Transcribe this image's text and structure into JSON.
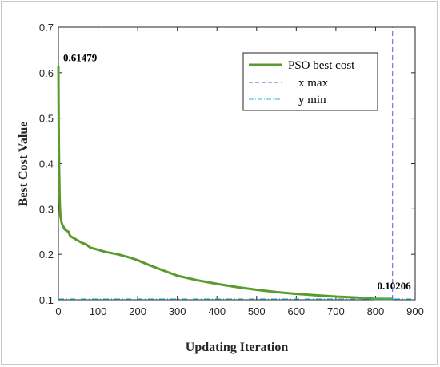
{
  "chart_data": {
    "type": "line",
    "xlabel": "Updating Iteration",
    "ylabel": "Best Cost Value",
    "xlim": [
      0,
      900
    ],
    "ylim": [
      0.1,
      0.7
    ],
    "xticks": [
      0,
      100,
      200,
      300,
      400,
      500,
      600,
      700,
      800,
      900
    ],
    "yticks": [
      0.1,
      0.2,
      0.3,
      0.4,
      0.5,
      0.6,
      0.7
    ],
    "xtick_labels": [
      "0",
      "100",
      "200",
      "300",
      "400",
      "500",
      "600",
      "700",
      "800",
      "900"
    ],
    "ytick_labels": [
      "0.1",
      "0.2",
      "0.3",
      "0.4",
      "0.5",
      "0.6",
      "0.7"
    ],
    "grid": false,
    "legend_position": "top-right",
    "series": [
      {
        "name": "PSO best cost",
        "style": "solid",
        "color": "#5b9a2c",
        "x": [
          0,
          1,
          2,
          3,
          4,
          5,
          6,
          8,
          10,
          12,
          15,
          20,
          25,
          30,
          40,
          50,
          60,
          70,
          80,
          100,
          120,
          150,
          180,
          200,
          230,
          260,
          300,
          350,
          400,
          450,
          500,
          550,
          600,
          650,
          700,
          750,
          800,
          843
        ],
        "y": [
          0.61479,
          0.45,
          0.38,
          0.33,
          0.3,
          0.285,
          0.28,
          0.27,
          0.265,
          0.262,
          0.256,
          0.252,
          0.25,
          0.24,
          0.235,
          0.23,
          0.225,
          0.222,
          0.215,
          0.21,
          0.205,
          0.2,
          0.193,
          0.187,
          0.176,
          0.166,
          0.153,
          0.143,
          0.135,
          0.128,
          0.122,
          0.117,
          0.113,
          0.11,
          0.107,
          0.105,
          0.10206,
          0.10206
        ]
      },
      {
        "name": "x max",
        "style": "dashed",
        "color": "#5555dd",
        "x": [
          843,
          843
        ],
        "y": [
          0.1,
          0.7
        ]
      },
      {
        "name": "y min",
        "style": "dashdot",
        "color": "#22bcd6",
        "x": [
          0,
          900
        ],
        "y": [
          0.10206,
          0.10206
        ]
      }
    ],
    "annotations": [
      {
        "text": "0.61479",
        "x": 0,
        "y": 0.61479
      },
      {
        "text": "0.10206",
        "x": 843,
        "y": 0.10206
      }
    ]
  }
}
